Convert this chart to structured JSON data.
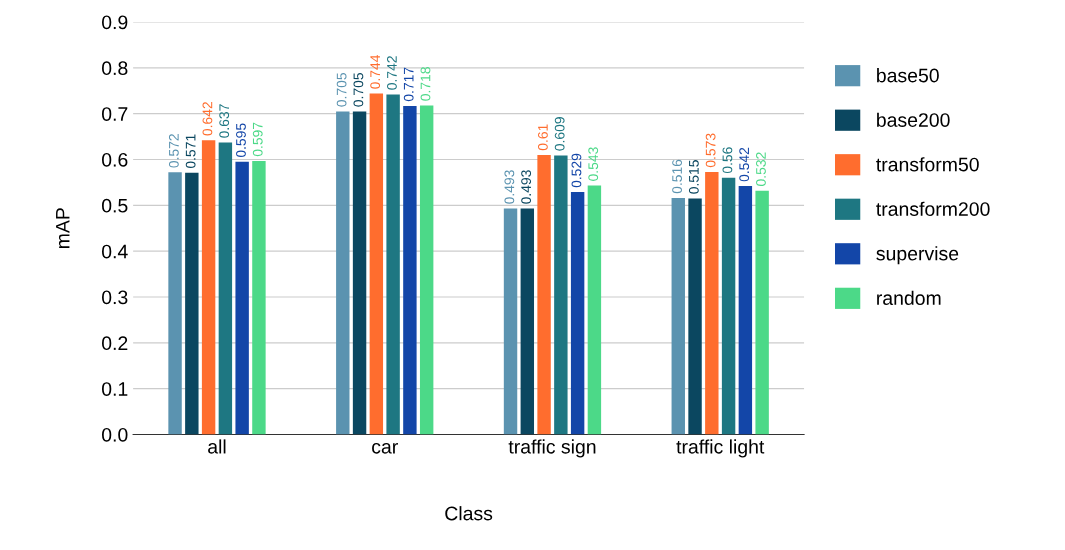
{
  "chart_data": {
    "type": "bar",
    "xlabel": "Class",
    "ylabel": "mAP",
    "categories": [
      "all",
      "car",
      "traffic sign",
      "traffic light"
    ],
    "series": [
      {
        "name": "base50",
        "color": "#5b93b0",
        "values": [
          0.572,
          0.705,
          0.493,
          0.516
        ]
      },
      {
        "name": "base200",
        "color": "#0b4760",
        "values": [
          0.571,
          0.705,
          0.493,
          0.515
        ]
      },
      {
        "name": "transform50",
        "color": "#ff6d2e",
        "values": [
          0.642,
          0.744,
          0.61,
          0.573
        ]
      },
      {
        "name": "transform200",
        "color": "#1e7782",
        "values": [
          0.637,
          0.742,
          0.609,
          0.56
        ]
      },
      {
        "name": "supervise",
        "color": "#1346a8",
        "values": [
          0.595,
          0.717,
          0.529,
          0.542
        ]
      },
      {
        "name": "random",
        "color": "#4cd988",
        "values": [
          0.597,
          0.718,
          0.543,
          0.532
        ]
      }
    ],
    "ylim": [
      0,
      0.9
    ],
    "yticks": [
      {
        "value": 0,
        "label": "0.0"
      },
      0.1,
      0.2,
      0.3,
      0.4,
      0.5,
      0.6,
      0.7,
      0.8,
      0.9
    ],
    "grid": "y",
    "legend": "right",
    "data_labels": true
  }
}
